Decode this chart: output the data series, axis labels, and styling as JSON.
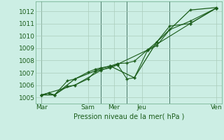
{
  "title": "Pression niveau de la mer( hPa )",
  "bg_color": "#cceee4",
  "grid_color": "#aaccbb",
  "line_color": "#1a5c1a",
  "xlim": [
    0,
    100
  ],
  "ylim": [
    1004.5,
    1012.8
  ],
  "yticks": [
    1005,
    1006,
    1007,
    1008,
    1009,
    1010,
    1011,
    1012
  ],
  "xtick_positions": [
    3,
    28,
    42,
    57,
    97
  ],
  "xtick_labels": [
    "Mar",
    "Sam",
    "Mer",
    "Jeu",
    "Ven"
  ],
  "vlines": [
    3,
    35,
    49,
    72
  ],
  "series1": {
    "x": [
      3,
      7,
      10,
      17,
      21,
      28,
      32,
      35,
      40,
      44,
      49,
      53,
      60,
      65,
      72,
      83,
      97
    ],
    "y": [
      1005.2,
      1005.35,
      1005.2,
      1006.35,
      1006.5,
      1007.05,
      1007.3,
      1007.4,
      1007.55,
      1007.75,
      1007.8,
      1007.95,
      1008.85,
      1009.5,
      1010.8,
      1011.0,
      1012.25
    ]
  },
  "series2": {
    "x": [
      3,
      7,
      10,
      17,
      21,
      28,
      32,
      35,
      40,
      44,
      49,
      53,
      60,
      65,
      72,
      83,
      97
    ],
    "y": [
      1005.2,
      1005.35,
      1005.2,
      1005.9,
      1006.0,
      1006.5,
      1007.1,
      1007.25,
      1007.4,
      1007.65,
      1006.5,
      1006.6,
      1008.8,
      1009.2,
      1010.5,
      1011.2,
      1012.25
    ]
  },
  "series3": {
    "x": [
      3,
      10,
      21,
      35,
      40,
      53,
      65,
      83,
      97
    ],
    "y": [
      1005.2,
      1005.2,
      1006.5,
      1007.35,
      1007.55,
      1006.6,
      1009.5,
      1012.1,
      1012.3
    ]
  },
  "series4": {
    "x": [
      3,
      21,
      35,
      44,
      60,
      83,
      97
    ],
    "y": [
      1005.2,
      1006.0,
      1007.2,
      1007.7,
      1008.85,
      1011.0,
      1012.25
    ]
  }
}
